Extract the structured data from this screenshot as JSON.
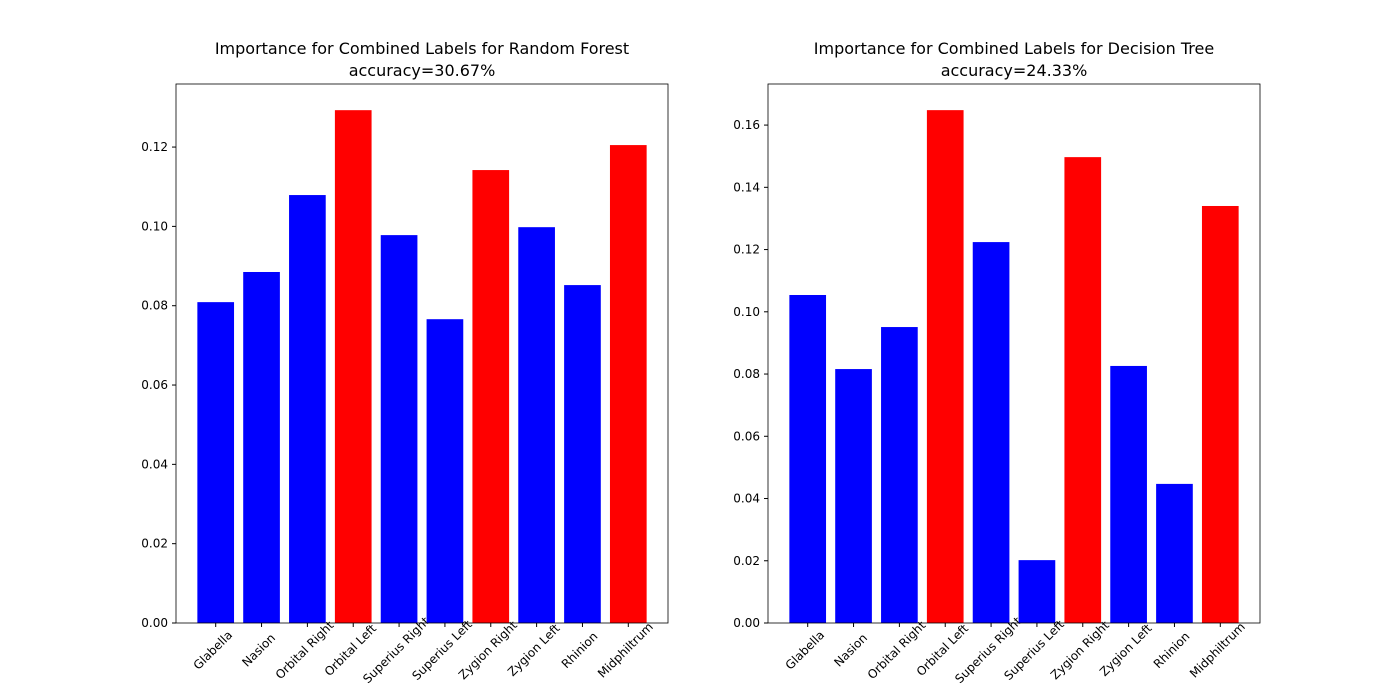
{
  "chart_data": [
    {
      "type": "bar",
      "title": "Importance for Combined Labels for Random Forest",
      "subtitle": "accuracy=30.67%",
      "categories": [
        "Glabella",
        "Nasion",
        "Orbital Right",
        "Orbital Left",
        "Superius Right",
        "Superius Left",
        "Zygion Right",
        "Zygion Left",
        "Rhinion",
        "Midphiltrum"
      ],
      "values": [
        0.0809,
        0.0885,
        0.1079,
        0.1293,
        0.0978,
        0.0766,
        0.1142,
        0.0998,
        0.0852,
        0.1205
      ],
      "colors": [
        "#0000ff",
        "#0000ff",
        "#0000ff",
        "#ff0000",
        "#0000ff",
        "#0000ff",
        "#ff0000",
        "#0000ff",
        "#0000ff",
        "#ff0000"
      ],
      "ylim": [
        0,
        0.1359
      ],
      "yticks": [
        {
          "value": 0,
          "label": "0.00"
        },
        {
          "value": 0.02,
          "label": "0.02"
        },
        {
          "value": 0.04,
          "label": "0.04"
        },
        {
          "value": 0.06,
          "label": "0.06"
        },
        {
          "value": 0.08,
          "label": "0.08"
        },
        {
          "value": 0.1,
          "label": "0.10"
        },
        {
          "value": 0.12,
          "label": "0.12"
        }
      ]
    },
    {
      "type": "bar",
      "title": "Importance for Combined Labels for Decision Tree",
      "subtitle": "accuracy=24.33%",
      "categories": [
        "Glabella",
        "Nasion",
        "Orbital Right",
        "Orbital Left",
        "Superius Right",
        "Superius Left",
        "Zygion Right",
        "Zygion Left",
        "Rhinion",
        "Midphiltrum"
      ],
      "values": [
        0.1054,
        0.0816,
        0.0951,
        0.1648,
        0.1224,
        0.0202,
        0.1497,
        0.0826,
        0.0447,
        0.134
      ],
      "colors": [
        "#0000ff",
        "#0000ff",
        "#0000ff",
        "#ff0000",
        "#0000ff",
        "#0000ff",
        "#ff0000",
        "#0000ff",
        "#0000ff",
        "#ff0000"
      ],
      "ylim": [
        0,
        0.1732
      ],
      "yticks": [
        {
          "value": 0,
          "label": "0.00"
        },
        {
          "value": 0.02,
          "label": "0.02"
        },
        {
          "value": 0.04,
          "label": "0.04"
        },
        {
          "value": 0.06,
          "label": "0.06"
        },
        {
          "value": 0.08,
          "label": "0.08"
        },
        {
          "value": 0.1,
          "label": "0.10"
        },
        {
          "value": 0.12,
          "label": "0.12"
        },
        {
          "value": 0.14,
          "label": "0.14"
        },
        {
          "value": 0.16,
          "label": "0.16"
        }
      ]
    }
  ]
}
